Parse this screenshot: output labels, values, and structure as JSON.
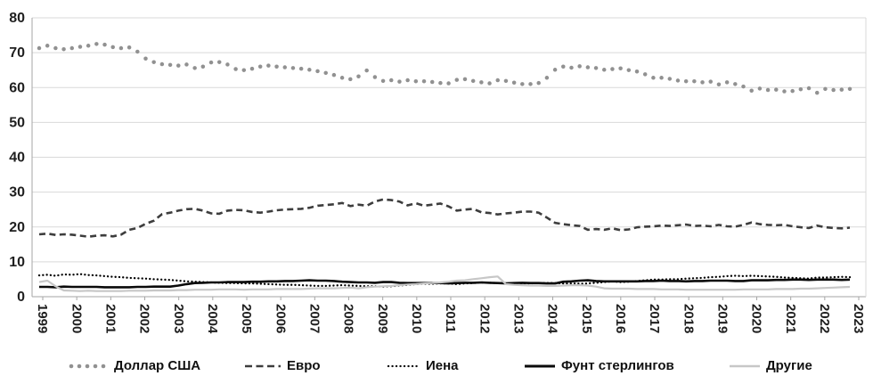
{
  "chart_data": {
    "type": "line",
    "title": "",
    "xlabel": "",
    "ylabel": "",
    "ylim": [
      0,
      80
    ],
    "y_ticks": [
      0,
      10,
      20,
      30,
      40,
      50,
      60,
      70,
      80
    ],
    "grid": true,
    "legend_position": "bottom",
    "x_frequency": "quarterly",
    "points_per_year": 4,
    "x_tick_labels": [
      "1999",
      "2000",
      "2001",
      "2002",
      "2003",
      "2004",
      "2005",
      "2006",
      "2007",
      "2008",
      "2009",
      "2010",
      "2011",
      "2012",
      "2013",
      "2014",
      "2015",
      "2016",
      "2017",
      "2018",
      "2019",
      "2020",
      "2021",
      "2022",
      "2023"
    ],
    "colors": {
      "usd": "#919191",
      "euro": "#3d3d3d",
      "yen": "#000000",
      "pound": "#0a0a0a",
      "other": "#c7c7c7",
      "gridline": "#d9d9d9",
      "axis": "#a6a6a6"
    },
    "series": [
      {
        "name": "Доллар США",
        "style": "round-dots",
        "color": "#919191",
        "values": [
          71.3,
          72.0,
          71.3,
          71.0,
          71.3,
          71.7,
          72.0,
          72.5,
          72.3,
          71.6,
          71.3,
          71.5,
          70.3,
          68.3,
          67.3,
          66.7,
          66.5,
          66.3,
          66.6,
          65.6,
          66.0,
          67.2,
          67.3,
          66.6,
          65.3,
          65.0,
          65.4,
          66.0,
          66.3,
          66.0,
          65.8,
          65.6,
          65.4,
          65.1,
          64.7,
          64.2,
          63.6,
          62.8,
          62.4,
          63.2,
          64.9,
          63.0,
          61.9,
          62.1,
          61.7,
          62.1,
          61.8,
          61.8,
          61.6,
          61.3,
          61.2,
          62.2,
          62.4,
          61.9,
          61.5,
          61.2,
          62.1,
          61.9,
          61.4,
          61.0,
          61.0,
          61.3,
          62.8,
          65.1,
          66.0,
          65.7,
          66.1,
          65.8,
          65.6,
          65.1,
          65.3,
          65.5,
          65.0,
          64.6,
          63.8,
          62.8,
          62.8,
          62.5,
          62.0,
          61.8,
          61.8,
          61.5,
          61.7,
          60.9,
          61.5,
          61.0,
          60.3,
          59.1,
          59.7,
          59.3,
          59.4,
          58.9,
          59.0,
          59.5,
          59.8,
          58.5,
          59.6,
          59.3,
          59.4,
          59.6
        ]
      },
      {
        "name": "Евро",
        "style": "dashed",
        "color": "#3d3d3d",
        "values": [
          17.9,
          18.1,
          17.7,
          17.9,
          17.8,
          17.5,
          17.2,
          17.5,
          17.6,
          17.3,
          17.8,
          19.2,
          19.7,
          20.9,
          21.8,
          23.7,
          24.1,
          24.7,
          25.1,
          25.2,
          24.7,
          23.9,
          23.8,
          24.7,
          24.9,
          24.8,
          24.3,
          24.1,
          24.4,
          24.8,
          25.0,
          25.1,
          25.2,
          25.5,
          26.1,
          26.3,
          26.5,
          26.9,
          26.0,
          26.4,
          26.1,
          27.3,
          27.9,
          27.7,
          27.3,
          26.2,
          26.8,
          26.1,
          26.4,
          26.7,
          25.9,
          24.7,
          25.0,
          25.2,
          24.2,
          24.0,
          23.6,
          23.9,
          24.1,
          24.4,
          24.4,
          24.1,
          22.7,
          21.2,
          20.8,
          20.5,
          20.3,
          19.2,
          19.4,
          19.2,
          19.6,
          19.1,
          19.3,
          19.9,
          20.1,
          20.2,
          20.4,
          20.3,
          20.5,
          20.7,
          20.3,
          20.4,
          20.2,
          20.6,
          20.2,
          20.1,
          20.6,
          21.3,
          20.8,
          20.6,
          20.5,
          20.6,
          20.2,
          19.9,
          19.7,
          20.4,
          19.9,
          19.7,
          19.6,
          19.8
        ]
      },
      {
        "name": "Иена",
        "style": "dotted",
        "color": "#000000",
        "values": [
          6.1,
          6.3,
          6.0,
          6.4,
          6.3,
          6.5,
          6.2,
          6.1,
          5.9,
          5.7,
          5.6,
          5.4,
          5.3,
          5.2,
          5.0,
          4.9,
          4.8,
          4.6,
          4.4,
          4.3,
          4.2,
          4.1,
          4.0,
          3.9,
          3.9,
          3.8,
          3.8,
          3.7,
          3.6,
          3.5,
          3.4,
          3.4,
          3.3,
          3.2,
          3.1,
          3.1,
          3.2,
          3.3,
          3.2,
          3.1,
          3.0,
          3.0,
          2.9,
          3.0,
          3.2,
          3.4,
          3.6,
          3.7,
          3.7,
          3.8,
          3.8,
          3.6,
          3.8,
          3.9,
          4.1,
          4.0,
          3.9,
          3.8,
          3.8,
          3.8,
          3.8,
          3.9,
          3.9,
          3.9,
          3.8,
          3.8,
          3.7,
          3.8,
          4.0,
          4.2,
          4.4,
          4.2,
          4.3,
          4.5,
          4.7,
          4.9,
          4.9,
          5.0,
          5.0,
          5.2,
          5.3,
          5.4,
          5.6,
          5.7,
          5.9,
          6.0,
          5.9,
          6.0,
          5.9,
          5.8,
          5.7,
          5.5,
          5.4,
          5.3,
          5.2,
          5.5,
          5.5,
          5.6,
          5.7,
          5.6
        ]
      },
      {
        "name": "Фунт стерлингов",
        "style": "solid",
        "color": "#0a0a0a",
        "values": [
          2.8,
          2.8,
          2.7,
          2.9,
          2.8,
          2.8,
          2.8,
          2.8,
          2.7,
          2.7,
          2.7,
          2.7,
          2.8,
          2.8,
          2.9,
          2.9,
          2.9,
          3.2,
          3.6,
          3.9,
          4.0,
          4.1,
          4.1,
          4.2,
          4.2,
          4.2,
          4.3,
          4.3,
          4.4,
          4.4,
          4.5,
          4.5,
          4.6,
          4.7,
          4.6,
          4.6,
          4.5,
          4.3,
          4.2,
          4.1,
          4.1,
          4.0,
          4.2,
          4.2,
          4.0,
          3.9,
          3.9,
          3.9,
          3.9,
          3.9,
          3.8,
          3.9,
          4.0,
          4.0,
          4.1,
          4.0,
          3.9,
          3.8,
          3.9,
          4.0,
          3.9,
          3.9,
          3.8,
          3.8,
          4.3,
          4.4,
          4.6,
          4.7,
          4.5,
          4.4,
          4.4,
          4.4,
          4.4,
          4.4,
          4.5,
          4.5,
          4.6,
          4.5,
          4.5,
          4.4,
          4.5,
          4.5,
          4.6,
          4.6,
          4.6,
          4.5,
          4.5,
          4.7,
          4.7,
          4.7,
          4.8,
          4.8,
          4.9,
          4.9,
          4.8,
          4.9,
          4.9,
          4.9,
          4.8,
          4.9
        ]
      },
      {
        "name": "Другие",
        "style": "solid",
        "color": "#c7c7c7",
        "values": [
          4.2,
          4.6,
          3.0,
          1.8,
          1.7,
          1.6,
          1.7,
          1.6,
          1.6,
          1.6,
          1.6,
          1.7,
          1.7,
          1.7,
          1.8,
          1.8,
          1.8,
          1.9,
          1.9,
          2.0,
          2.0,
          2.0,
          2.1,
          2.1,
          2.1,
          2.0,
          2.1,
          2.1,
          2.1,
          2.2,
          2.2,
          2.2,
          2.2,
          2.3,
          2.4,
          2.4,
          2.4,
          2.5,
          2.6,
          2.4,
          2.7,
          2.9,
          3.0,
          3.1,
          3.3,
          3.5,
          3.6,
          3.8,
          3.9,
          4.1,
          4.3,
          4.6,
          4.7,
          5.0,
          5.3,
          5.6,
          5.8,
          3.6,
          3.4,
          3.3,
          3.2,
          3.2,
          3.1,
          3.1,
          3.2,
          3.3,
          3.3,
          3.2,
          2.9,
          2.4,
          2.3,
          2.3,
          2.3,
          2.2,
          2.2,
          2.2,
          2.1,
          2.1,
          2.1,
          2.0,
          2.0,
          2.0,
          2.0,
          2.0,
          2.0,
          2.0,
          2.1,
          2.1,
          2.1,
          2.1,
          2.2,
          2.2,
          2.2,
          2.3,
          2.3,
          2.4,
          2.5,
          2.6,
          2.7,
          2.8
        ]
      }
    ]
  },
  "legend": {
    "items": [
      "Доллар США",
      "Евро",
      "Иена",
      "Фунт стерлингов",
      "Другие"
    ]
  }
}
